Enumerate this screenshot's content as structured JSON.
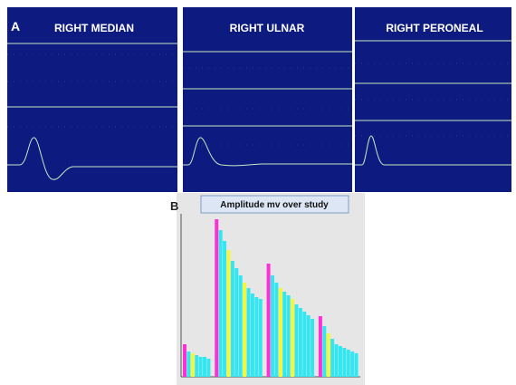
{
  "panel_a": {
    "label": "A",
    "panels": [
      {
        "title": "RIGHT MEDIAN"
      },
      {
        "title": "RIGHT ULNAR"
      },
      {
        "title": "RIGHT PERONEAL"
      }
    ]
  },
  "chart_data": {
    "type": "bar",
    "label": "B",
    "title": "Amplitude mv over study",
    "categories": [
      null,
      null,
      null,
      null,
      null,
      null,
      null,
      null,
      null,
      null,
      null,
      null,
      null,
      null,
      null,
      null,
      null,
      null,
      null,
      null,
      null,
      null,
      null,
      null,
      null,
      null,
      null,
      null,
      null,
      null,
      null,
      null,
      null,
      null,
      null,
      null,
      null,
      null,
      null,
      null,
      null,
      null,
      null,
      null
    ],
    "values": [
      36,
      28,
      26,
      24,
      22,
      22,
      20,
      null,
      174,
      162,
      150,
      140,
      128,
      120,
      112,
      104,
      98,
      92,
      88,
      86,
      null,
      125,
      112,
      104,
      98,
      94,
      90,
      86,
      80,
      76,
      72,
      68,
      64,
      null,
      67,
      56,
      48,
      42,
      36,
      34,
      32,
      30,
      28,
      26
    ],
    "colors": [
      "#ff2fd6",
      "#33e6f0",
      "#f5f53a",
      "#33e6f0",
      "#33e6f0",
      "#33e6f0",
      "#33e6f0",
      null,
      "#ff2fd6",
      "#33e6f0",
      "#33e6f0",
      "#f5f53a",
      "#33e6f0",
      "#33e6f0",
      "#33e6f0",
      "#f5f53a",
      "#33e6f0",
      "#33e6f0",
      "#33e6f0",
      "#33e6f0",
      null,
      "#ff2fd6",
      "#33e6f0",
      "#33e6f0",
      "#f5f53a",
      "#33e6f0",
      "#33e6f0",
      "#f5f53a",
      "#33e6f0",
      "#33e6f0",
      "#33e6f0",
      "#33e6f0",
      "#33e6f0",
      null,
      "#ff2fd6",
      "#33e6f0",
      "#f5f53a",
      "#33e6f0",
      "#33e6f0",
      "#33e6f0",
      "#33e6f0",
      "#33e6f0",
      "#33e6f0",
      "#33e6f0"
    ],
    "ylim": [
      0,
      180
    ]
  }
}
